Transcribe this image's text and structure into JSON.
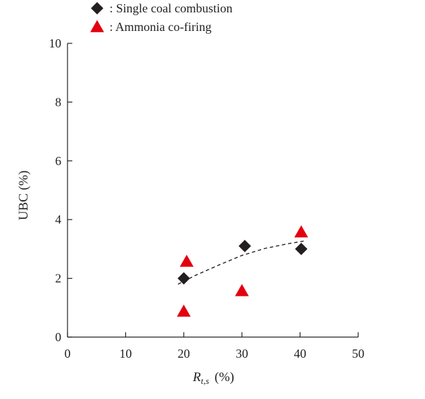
{
  "chart_data": {
    "type": "scatter",
    "xlabel_symbol": "R",
    "xlabel_subscript": "t,s",
    "xlabel_unit": "(%)",
    "ylabel": "UBC (%)",
    "xlim": [
      0,
      50
    ],
    "ylim": [
      0,
      10
    ],
    "xticks": [
      "0",
      "10",
      "20",
      "30",
      "40",
      "50"
    ],
    "yticks": [
      "0",
      "2",
      "4",
      "6",
      "8",
      "10"
    ],
    "grid": false,
    "legend_position": "top-left",
    "series": [
      {
        "name": ": Single coal combustion",
        "marker": "diamond",
        "color": "#231f20",
        "points": [
          {
            "x": 20.0,
            "y": 2.0
          },
          {
            "x": 30.5,
            "y": 3.1
          },
          {
            "x": 40.2,
            "y": 3.0
          }
        ]
      },
      {
        "name": ": Ammonia co-firing",
        "marker": "triangle",
        "color": "#e3000f",
        "points": [
          {
            "x": 20.5,
            "y": 2.55
          },
          {
            "x": 20.0,
            "y": 0.85
          },
          {
            "x": 30.0,
            "y": 1.55
          },
          {
            "x": 40.2,
            "y": 3.55
          }
        ]
      }
    ],
    "trendline": {
      "style": "dashed",
      "series": ": Single coal combustion",
      "points": [
        {
          "x": 19.0,
          "y": 1.8
        },
        {
          "x": 22.0,
          "y": 2.1
        },
        {
          "x": 26.0,
          "y": 2.45
        },
        {
          "x": 30.0,
          "y": 2.78
        },
        {
          "x": 34.0,
          "y": 3.02
        },
        {
          "x": 38.0,
          "y": 3.18
        },
        {
          "x": 41.0,
          "y": 3.28
        }
      ]
    }
  }
}
